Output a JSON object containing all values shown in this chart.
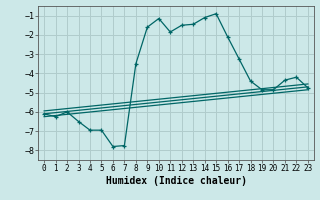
{
  "title": "",
  "xlabel": "Humidex (Indice chaleur)",
  "bg_color": "#cce8e8",
  "grid_color": "#b0cccc",
  "line_color": "#006666",
  "xlim": [
    -0.5,
    23.5
  ],
  "ylim": [
    -8.5,
    -0.5
  ],
  "yticks": [
    -8,
    -7,
    -6,
    -5,
    -4,
    -3,
    -2,
    -1
  ],
  "xticks": [
    0,
    1,
    2,
    3,
    4,
    5,
    6,
    7,
    8,
    9,
    10,
    11,
    12,
    13,
    14,
    15,
    16,
    17,
    18,
    19,
    20,
    21,
    22,
    23
  ],
  "main_x": [
    0,
    1,
    2,
    3,
    4,
    5,
    6,
    7,
    8,
    9,
    10,
    11,
    12,
    13,
    14,
    15,
    16,
    17,
    18,
    19,
    20,
    21,
    22,
    23
  ],
  "main_y": [
    -6.1,
    -6.25,
    -6.0,
    -6.5,
    -6.95,
    -6.95,
    -7.8,
    -7.75,
    -3.5,
    -1.6,
    -1.15,
    -1.85,
    -1.5,
    -1.45,
    -1.1,
    -0.9,
    -2.1,
    -3.25,
    -4.4,
    -4.85,
    -4.85,
    -4.35,
    -4.2,
    -4.75
  ],
  "line2_x": [
    0,
    23
  ],
  "line2_y": [
    -5.95,
    -4.55
  ],
  "line3_x": [
    0,
    23
  ],
  "line3_y": [
    -6.1,
    -4.7
  ],
  "line4_x": [
    0,
    23
  ],
  "line4_y": [
    -6.25,
    -4.85
  ],
  "xlabel_fontsize": 7,
  "tick_fontsize": 5.5
}
